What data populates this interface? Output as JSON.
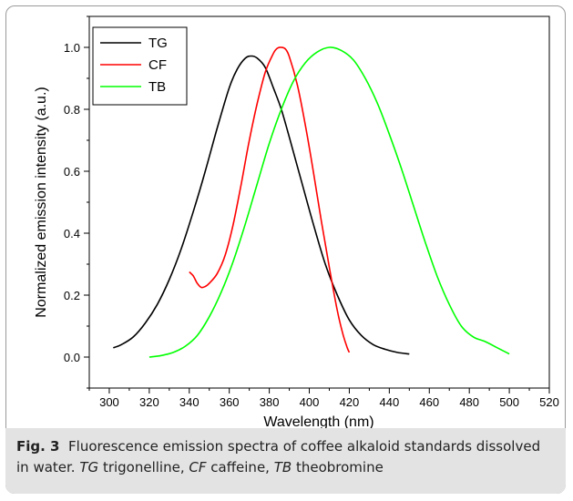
{
  "chart_data": {
    "type": "line",
    "xlabel": "Wavelength (nm)",
    "ylabel": "Normalized emission intensity (a.u.)",
    "xlim": [
      290,
      520
    ],
    "ylim": [
      -0.1,
      1.1
    ],
    "x_ticks": [
      300,
      320,
      340,
      360,
      380,
      400,
      420,
      440,
      460,
      480,
      500,
      520
    ],
    "y_ticks": [
      0.0,
      0.2,
      0.4,
      0.6,
      0.8,
      1.0
    ],
    "legend_position": "top-left",
    "grid": false,
    "series": [
      {
        "name": "TG",
        "color": "#000000",
        "x": [
          302,
          306,
          312,
          318,
          324,
          330,
          336,
          342,
          348,
          354,
          360,
          364,
          368,
          371,
          374,
          378,
          382,
          386,
          390,
          396,
          402,
          408,
          414,
          420,
          426,
          432,
          438,
          444,
          450
        ],
        "y": [
          0.03,
          0.04,
          0.065,
          0.11,
          0.17,
          0.25,
          0.35,
          0.47,
          0.6,
          0.74,
          0.87,
          0.93,
          0.965,
          0.972,
          0.965,
          0.935,
          0.87,
          0.8,
          0.71,
          0.57,
          0.43,
          0.3,
          0.2,
          0.12,
          0.07,
          0.04,
          0.025,
          0.015,
          0.01
        ]
      },
      {
        "name": "CF",
        "color": "#ff0000",
        "x": [
          340,
          342,
          344,
          346,
          348,
          350,
          354,
          358,
          362,
          366,
          370,
          374,
          378,
          382,
          384,
          386,
          388,
          390,
          394,
          398,
          402,
          406,
          410,
          414,
          417,
          419,
          420
        ],
        "y": [
          0.275,
          0.262,
          0.238,
          0.225,
          0.228,
          0.238,
          0.27,
          0.33,
          0.43,
          0.56,
          0.7,
          0.82,
          0.92,
          0.98,
          0.997,
          1.0,
          0.995,
          0.97,
          0.88,
          0.75,
          0.6,
          0.44,
          0.29,
          0.15,
          0.07,
          0.03,
          0.015
        ]
      },
      {
        "name": "TB",
        "color": "#00ff00",
        "x": [
          320,
          326,
          332,
          338,
          344,
          350,
          356,
          362,
          368,
          374,
          380,
          386,
          392,
          398,
          404,
          410,
          416,
          422,
          428,
          434,
          440,
          446,
          452,
          458,
          464,
          470,
          476,
          482,
          488,
          494,
          500
        ],
        "y": [
          0.0,
          0.005,
          0.015,
          0.035,
          0.07,
          0.13,
          0.21,
          0.31,
          0.43,
          0.56,
          0.69,
          0.8,
          0.89,
          0.95,
          0.985,
          1.0,
          0.99,
          0.96,
          0.9,
          0.82,
          0.72,
          0.61,
          0.49,
          0.37,
          0.26,
          0.17,
          0.1,
          0.065,
          0.05,
          0.03,
          0.01
        ]
      }
    ]
  },
  "caption": {
    "fig_label": "Fig. 3",
    "text_1": "Fluorescence emission spectra of coffee alkaloid standards dissolved in water.",
    "abbr_1": "TG",
    "def_1": "trigonelline,",
    "abbr_2": "CF",
    "def_2": "caffeine,",
    "abbr_3": "TB",
    "def_3": "theobromine"
  }
}
